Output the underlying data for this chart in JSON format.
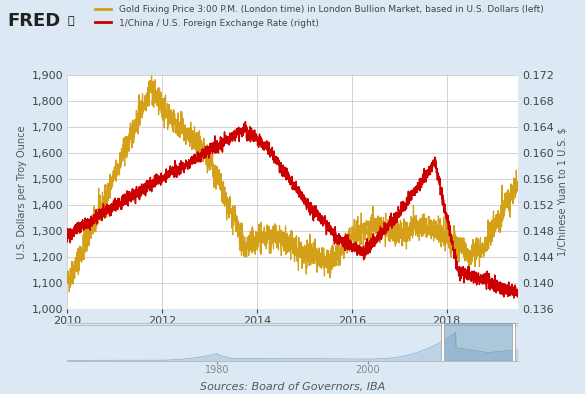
{
  "legend_gold": "Gold Fixing Price 3:00 P.M. (London time) in London Bullion Market, based in U.S. Dollars (left)",
  "legend_yuan": "1/China / U.S. Foreign Exchange Rate (right)",
  "ylabel_left": "U.S. Dollars per Troy Ounce",
  "ylabel_right": "1/Chinese Yuan to 1 U.S. $",
  "source": "Sources: Board of Governors, IBA",
  "background_color": "#dce9f5",
  "plot_background": "#ffffff",
  "gold_color": "#d4a017",
  "yuan_color": "#cc0000",
  "nav_fill_color": "#a8c4dc",
  "nav_bg_color": "#dce9f5",
  "ylim_left": [
    1000,
    1900
  ],
  "ylim_right": [
    0.136,
    0.172
  ],
  "yticks_left": [
    1000,
    1100,
    1200,
    1300,
    1400,
    1500,
    1600,
    1700,
    1800,
    1900
  ],
  "yticks_right": [
    0.136,
    0.14,
    0.144,
    0.148,
    0.152,
    0.156,
    0.16,
    0.164,
    0.168,
    0.172
  ],
  "xlim": [
    2010.0,
    2019.5
  ],
  "xticks": [
    2010,
    2012,
    2014,
    2016,
    2018
  ],
  "nav_xlim": [
    1960,
    2020
  ],
  "nav_xticks": [
    1980,
    2000
  ],
  "nav_selected": [
    2010,
    2019.5
  ]
}
